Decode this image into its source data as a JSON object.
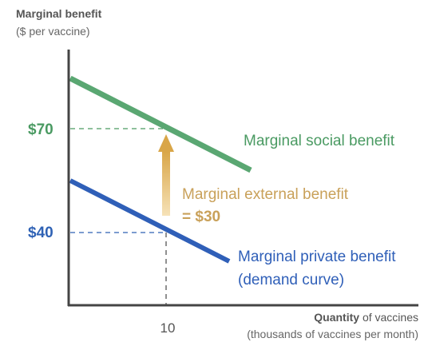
{
  "chart_data": {
    "type": "line",
    "ylabel_bold": "Marginal benefit",
    "ylabel_sub": "($ per vaccine)",
    "xlabel_bold": "Quantity",
    "xlabel_rest": " of vaccines",
    "xlabel_sub": "(thousands of vaccines per month)",
    "x_ticks": [
      {
        "value": 10,
        "label": "10"
      }
    ],
    "y_ticks": [
      {
        "value": 70,
        "label": "$70",
        "color": "#4a9a62"
      },
      {
        "value": 40,
        "label": "$40",
        "color": "#2f62b5"
      }
    ],
    "xlim": [
      0,
      20
    ],
    "ylim": [
      0,
      100
    ],
    "series": [
      {
        "name": "Marginal social benefit",
        "color": "#5aa772",
        "x": [
          0,
          19
        ],
        "y": [
          86,
          64
        ]
      },
      {
        "name": "Marginal private benefit",
        "label_line2": "(demand curve)",
        "color": "#2f5fb8",
        "x": [
          0,
          19
        ],
        "y": [
          56,
          34
        ]
      }
    ],
    "annotation": {
      "line1": "Marginal external benefit",
      "line2": "= $30",
      "color": "#c9a15a",
      "arrow_x": 10,
      "from_y": 40,
      "to_y": 70
    },
    "guide_color": "#555555"
  }
}
